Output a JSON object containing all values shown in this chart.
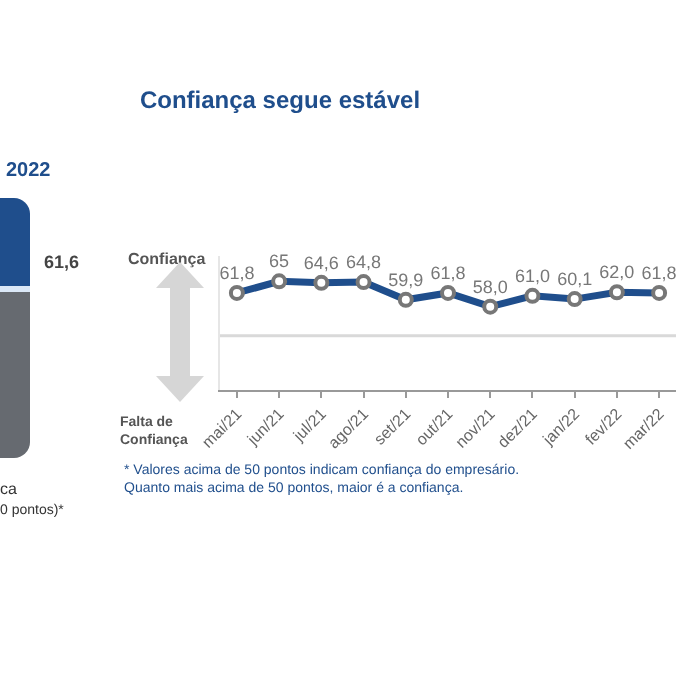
{
  "chart_data": [
    {
      "type": "other",
      "title": "2022",
      "annotations": [
        "61,6",
        "ca",
        "0 pontos)*"
      ]
    },
    {
      "type": "line",
      "title": "Confiança segue estável",
      "categories": [
        "mai/21",
        "jun/21",
        "jul/21",
        "ago/21",
        "set/21",
        "out/21",
        "nov/21",
        "dez/21",
        "jan/22",
        "fev/22",
        "mar/22"
      ],
      "series": [
        {
          "color": "#1f4e8c",
          "values": [
            61.8,
            65,
            64.6,
            64.8,
            59.9,
            61.8,
            58.0,
            61.0,
            60.1,
            62.0,
            61.8
          ],
          "value_labels": [
            "61,8",
            "65",
            "64,6",
            "64,8",
            "59,9",
            "61,8",
            "58,0",
            "61,0",
            "60,1",
            "62,0",
            "61,8"
          ]
        }
      ],
      "ylim": [
        35,
        72
      ],
      "marker": "circle",
      "line_style": "solid",
      "grid": false,
      "ref_lines": [
        {
          "axis": "y",
          "value": 50,
          "color": "#d9d9d9"
        }
      ],
      "annotations": [
        "Confiança",
        "Falta de Confiança",
        "* Valores acima de 50 pontos indicam confiança do empresário. Quanto mais acima de 50 pontos, maior é a confiança."
      ]
    }
  ]
}
